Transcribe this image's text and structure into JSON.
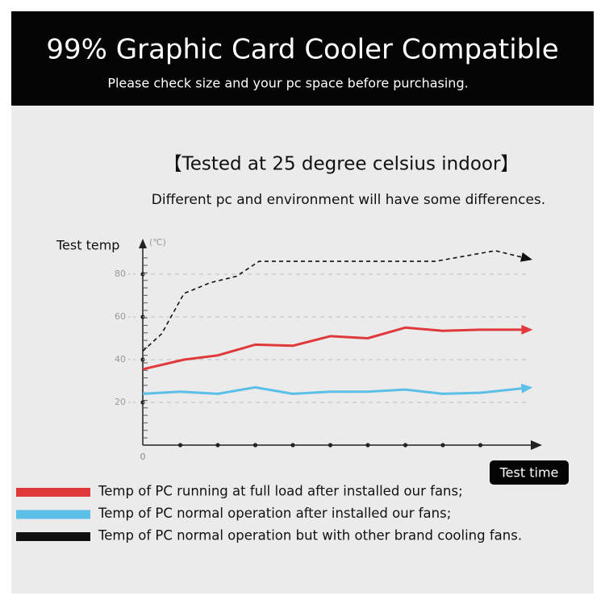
{
  "chart_data": {
    "type": "line",
    "title": "99% Graphic Card Cooler Compatible",
    "subtitle": "Please check size and your pc space before purchasing.",
    "annotations": [
      "【Tested at 25 degree celsius indoor】",
      "Different pc and environment will have some differences."
    ],
    "y_label": "Test temp",
    "y_unit": "(℃)",
    "x_label": "Test time",
    "xlim": [
      0,
      10.5
    ],
    "ylim": [
      0,
      95
    ],
    "yticks": [
      0,
      20,
      40,
      60,
      80
    ],
    "grid": true,
    "series": [
      {
        "name": "Temp of PC running at full load after installed our fans;",
        "color": "#e0393b",
        "dashed": false,
        "x": [
          0,
          1.1,
          2,
          3,
          4,
          5,
          6,
          7,
          8,
          9,
          10.1
        ],
        "values": [
          35.5,
          40,
          42,
          47,
          46.5,
          51,
          50,
          55,
          53.5,
          54,
          54
        ]
      },
      {
        "name": "Temp of PC normal operation after installed our fans;",
        "color": "#5bbfe8",
        "dashed": false,
        "x": [
          0,
          1,
          2,
          3,
          4,
          5,
          6,
          7,
          8,
          9,
          10.1
        ],
        "values": [
          24,
          25,
          24,
          27,
          24,
          25,
          25,
          26,
          24,
          24.5,
          26.5
        ]
      },
      {
        "name": "Temp of PC normal operation but with other brand cooling fans.",
        "color": "#111111",
        "dashed": true,
        "x": [
          0,
          0.5,
          1.1,
          1.8,
          2.5,
          3.1,
          7.8,
          9.4,
          10.1
        ],
        "values": [
          44,
          52,
          71,
          76,
          79,
          86,
          86,
          91,
          88
        ]
      }
    ]
  }
}
